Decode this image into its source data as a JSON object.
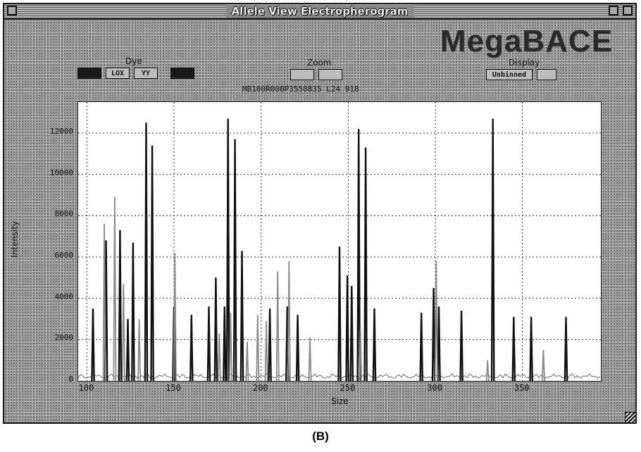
{
  "window": {
    "title": "Allele View Electropherogram",
    "brand": "MegaBACE"
  },
  "toolbar": {
    "dye_label": "Dye",
    "dye_buttons": [
      "",
      "LOX",
      "YY",
      ""
    ],
    "zoom_label": "Zoom",
    "zoom_buttons": [
      "",
      ""
    ],
    "display_label": "Display",
    "display_buttons": [
      "Unbinned",
      ""
    ]
  },
  "run_label": "MB100R000P3550835 L24 918",
  "caption": "(B)",
  "chart_data": {
    "type": "line",
    "xlabel": "Size",
    "ylabel": "Intensity",
    "xlim": [
      95,
      395
    ],
    "ylim": [
      0,
      13500
    ],
    "xticks": [
      100,
      150,
      200,
      250,
      300,
      350
    ],
    "yticks": [
      0,
      2000,
      4000,
      6000,
      8000,
      10000,
      12000
    ],
    "ytick_labels": [
      "0",
      "2000",
      "4000",
      "6000",
      "8000",
      "10000",
      "12000"
    ],
    "xtick_labels": [
      "100",
      "150",
      "200",
      "250",
      "300",
      "350"
    ],
    "grid": true,
    "series": [
      {
        "color": "#111111",
        "peaks": [
          [
            103.5,
            3500
          ],
          [
            111,
            6800
          ],
          [
            119,
            7300
          ],
          [
            123.5,
            3000
          ],
          [
            126.5,
            6700
          ],
          [
            134,
            12500
          ],
          [
            137.5,
            11400
          ],
          [
            150,
            3600
          ],
          [
            160,
            3200
          ],
          [
            170,
            3600
          ],
          [
            174,
            5000
          ],
          [
            179,
            3600
          ],
          [
            181,
            12700
          ],
          [
            185,
            11700
          ],
          [
            189,
            6300
          ],
          [
            205,
            3500
          ],
          [
            215,
            3600
          ],
          [
            221,
            3200
          ],
          [
            245,
            6500
          ],
          [
            249.5,
            5100
          ],
          [
            252,
            4600
          ],
          [
            256,
            12200
          ],
          [
            260,
            11300
          ],
          [
            265,
            3500
          ],
          [
            292,
            3300
          ],
          [
            299,
            4500
          ],
          [
            302,
            3600
          ],
          [
            315,
            3400
          ],
          [
            333,
            12700
          ],
          [
            345,
            3100
          ],
          [
            355,
            3100
          ],
          [
            375,
            3100
          ]
        ]
      },
      {
        "color": "#8a8a8a",
        "peaks": [
          [
            110,
            7600
          ],
          [
            116,
            8900
          ],
          [
            121,
            4700
          ],
          [
            130,
            3000
          ],
          [
            150.5,
            6200
          ],
          [
            176,
            2300
          ],
          [
            182.5,
            3300
          ],
          [
            192,
            1900
          ],
          [
            198,
            3200
          ],
          [
            203,
            2900
          ],
          [
            209.5,
            5300
          ],
          [
            216,
            5800
          ],
          [
            228,
            2100
          ],
          [
            257,
            2500
          ],
          [
            300.5,
            5800
          ],
          [
            330,
            1000
          ],
          [
            362,
            1500
          ]
        ]
      }
    ]
  }
}
